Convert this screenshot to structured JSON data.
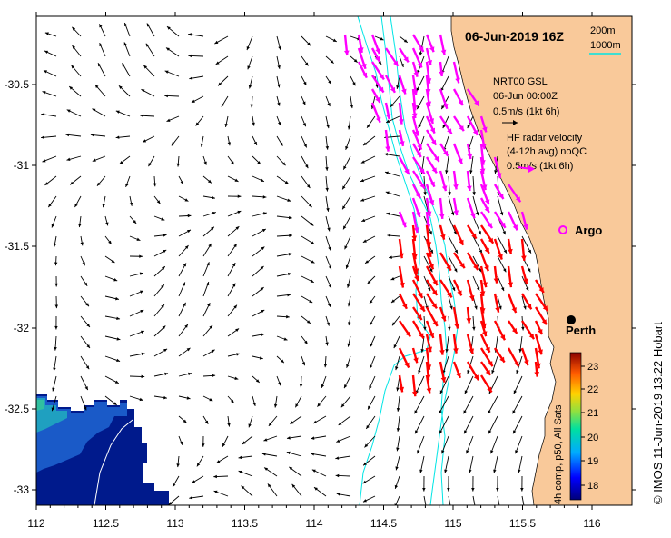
{
  "title": "06-Jun-2019 16Z",
  "isobath_legend": {
    "line1": "200m",
    "line2": "1000m"
  },
  "model_legend": {
    "line1": "NRT00 GSL",
    "line2": "06-Jun 00:00Z",
    "line3": "0.5m/s (1kt 6h)"
  },
  "radar_legend": {
    "line1": "HF radar velocity",
    "line2": "(4-12h avg) noQC",
    "line3": "0.5m/s (1kt 6h)"
  },
  "places": {
    "argo": "Argo",
    "perth": "Perth"
  },
  "colorbar": {
    "label": "4h comp, p50, All Sats",
    "ticks": [
      "18",
      "19",
      "20",
      "21",
      "22",
      "23"
    ]
  },
  "credit": "© IMOS 11-Jun-2019 13:22 Hobart",
  "axes": {
    "x_ticks": [
      "112",
      "112.5",
      "113",
      "113.5",
      "114",
      "114.5",
      "115",
      "115.5",
      "116"
    ],
    "y_ticks": [
      "-30.5",
      "-31",
      "-31.5",
      "-32",
      "-32.5",
      "-33"
    ]
  },
  "colors": {
    "land": "#f9c99a",
    "model_arrow": "#000000",
    "radar_arrow_north": "#ff00ff",
    "radar_arrow_south": "#ff0000",
    "isobath": "#00e5e5"
  }
}
